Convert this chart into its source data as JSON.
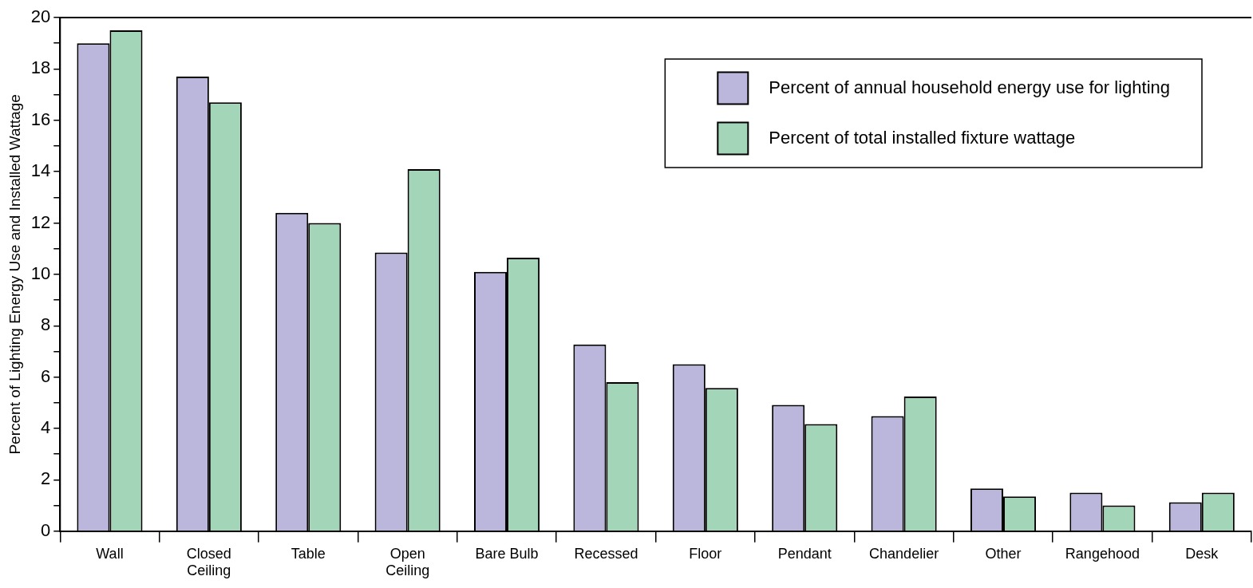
{
  "chart_data": {
    "type": "bar",
    "ylabel": "Percent of Lighting Energy Use and Installed Wattage",
    "categories": [
      "Wall",
      "Closed\nCeiling",
      "Table",
      "Open\nCeiling",
      "Bare Bulb",
      "Recessed",
      "Floor",
      "Pendant",
      "Chandelier",
      "Other",
      "Rangehood",
      "Desk"
    ],
    "series": [
      {
        "name": "Percent of annual household energy use for lighting",
        "color": "#bab6dc",
        "values": [
          19.0,
          17.7,
          12.4,
          10.85,
          10.1,
          7.27,
          6.5,
          4.92,
          4.48,
          1.66,
          1.5,
          1.13
        ]
      },
      {
        "name": "Percent of total installed fixture wattage",
        "color": "#a3d6b8",
        "values": [
          19.5,
          16.7,
          12.0,
          14.1,
          10.65,
          5.8,
          5.58,
          4.17,
          5.24,
          1.35,
          1.0,
          1.5
        ]
      }
    ],
    "ylim": [
      0,
      20
    ],
    "yticks": [
      0,
      {
        "value": 1,
        "label": null
      },
      2,
      {
        "value": 3,
        "label": null
      },
      4,
      {
        "value": 5,
        "label": null
      },
      6,
      {
        "value": 7,
        "label": null
      },
      8,
      {
        "value": 9,
        "label": null
      },
      10,
      {
        "value": 11,
        "label": null
      },
      12,
      {
        "value": 13,
        "label": null
      },
      14,
      {
        "value": 15,
        "label": null
      },
      16,
      {
        "value": 17,
        "label": null
      },
      18,
      {
        "value": 19,
        "label": null
      },
      20
    ],
    "grid": false,
    "legend": "top right"
  }
}
